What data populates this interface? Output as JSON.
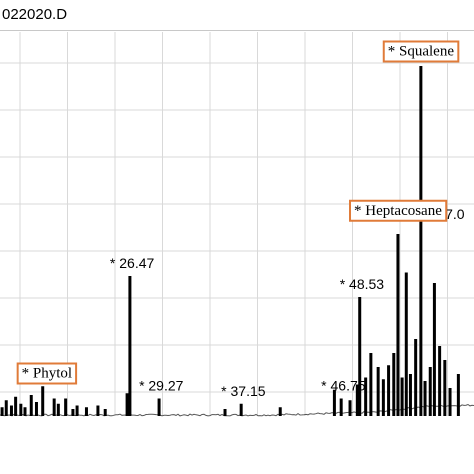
{
  "window": {
    "title": "022020.D"
  },
  "colors": {
    "peak": "#000000",
    "grid": "#d9d9d9",
    "baseline": "#555555",
    "annotation_box": "#e07b39",
    "axis_bar": "#000000"
  },
  "chart_data": {
    "type": "line",
    "title": "",
    "xlabel": "",
    "ylabel": "",
    "xlim": [
      14.0,
      59.5
    ],
    "ylim": [
      0,
      100
    ],
    "grid": true,
    "legend": "none",
    "peaks": [
      {
        "x": 14.2,
        "y": 2.5
      },
      {
        "x": 14.6,
        "y": 4.5
      },
      {
        "x": 15.1,
        "y": 3.0
      },
      {
        "x": 15.5,
        "y": 5.5
      },
      {
        "x": 16.0,
        "y": 3.5
      },
      {
        "x": 16.4,
        "y": 2.5
      },
      {
        "x": 17.0,
        "y": 6.0
      },
      {
        "x": 17.5,
        "y": 4.0
      },
      {
        "x": 18.1,
        "y": 8.5
      },
      {
        "x": 19.2,
        "y": 5.0
      },
      {
        "x": 19.6,
        "y": 3.5
      },
      {
        "x": 20.3,
        "y": 5.0
      },
      {
        "x": 21.0,
        "y": 2.0
      },
      {
        "x": 21.4,
        "y": 3.0
      },
      {
        "x": 22.3,
        "y": 2.5
      },
      {
        "x": 23.4,
        "y": 3.0
      },
      {
        "x": 24.1,
        "y": 2.0
      },
      {
        "x": 26.2,
        "y": 6.5
      },
      {
        "x": 26.47,
        "y": 40.0,
        "label": "* 26.47"
      },
      {
        "x": 29.27,
        "y": 5.0,
        "label": "* 29.27"
      },
      {
        "x": 35.6,
        "y": 2.0
      },
      {
        "x": 37.15,
        "y": 3.5,
        "label": "* 37.15"
      },
      {
        "x": 40.9,
        "y": 2.5
      },
      {
        "x": 46.1,
        "y": 7.5
      },
      {
        "x": 46.75,
        "y": 5.0,
        "label": "* 46.75"
      },
      {
        "x": 47.6,
        "y": 4.5
      },
      {
        "x": 48.3,
        "y": 9.0
      },
      {
        "x": 48.53,
        "y": 34.0,
        "label": "* 48.53"
      },
      {
        "x": 49.1,
        "y": 11.0
      },
      {
        "x": 49.6,
        "y": 18.0
      },
      {
        "x": 50.3,
        "y": 14.0
      },
      {
        "x": 50.8,
        "y": 10.5
      },
      {
        "x": 51.3,
        "y": 14.5
      },
      {
        "x": 51.8,
        "y": 18.0
      },
      {
        "x": 52.2,
        "y": 52.0
      },
      {
        "x": 52.6,
        "y": 11.0
      },
      {
        "x": 53.0,
        "y": 41.0
      },
      {
        "x": 53.4,
        "y": 12.0
      },
      {
        "x": 53.9,
        "y": 22.0
      },
      {
        "x": 54.4,
        "y": 100.0
      },
      {
        "x": 54.8,
        "y": 10.0
      },
      {
        "x": 55.3,
        "y": 14.0
      },
      {
        "x": 55.7,
        "y": 38.0
      },
      {
        "x": 56.2,
        "y": 20.0
      },
      {
        "x": 56.7,
        "y": 16.0
      },
      {
        "x": 57.2,
        "y": 8.0
      },
      {
        "x": 58.0,
        "y": 12.0
      }
    ],
    "text_labels": [
      {
        "text": "* 57.0",
        "x": 57.0,
        "y": 54.0
      }
    ],
    "boxed_annotations": [
      {
        "text": "* Phytol",
        "x": 18.5,
        "y": 11.0
      },
      {
        "text": "* Heptacosane",
        "x": 52.2,
        "y": 57.5
      },
      {
        "text": "* Squalene",
        "x": 54.4,
        "y": 103.0
      }
    ]
  }
}
